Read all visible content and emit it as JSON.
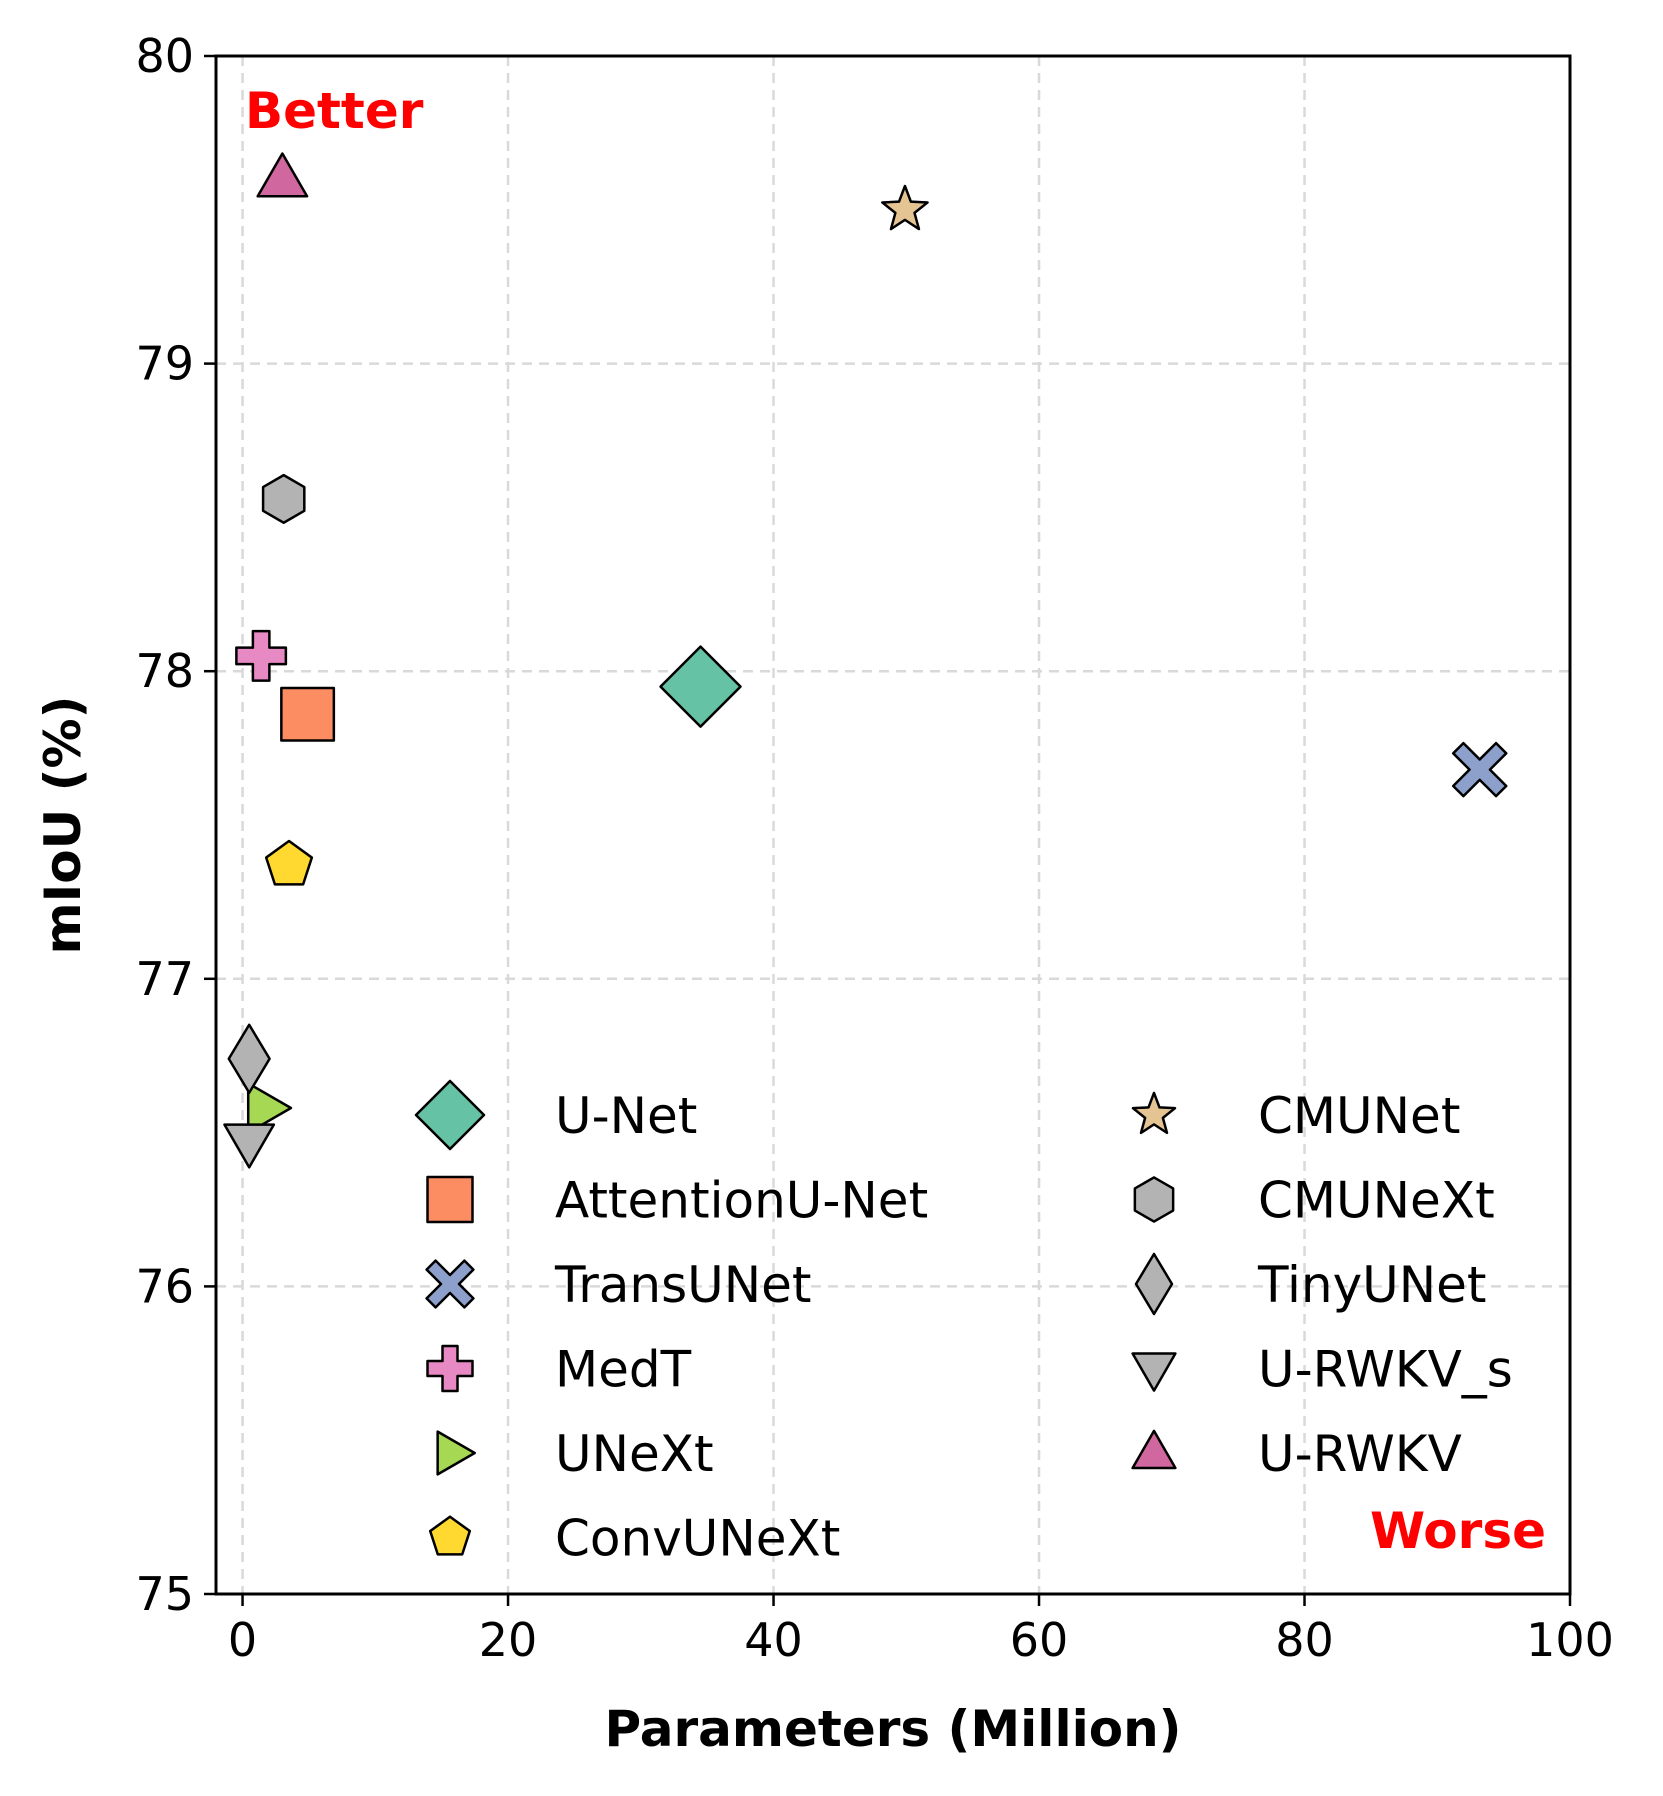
{
  "chart_data": {
    "type": "scatter",
    "xlabel": "Parameters (Million)",
    "ylabel": "mIoU (%)",
    "xlim": [
      -2,
      100
    ],
    "ylim": [
      75,
      80
    ],
    "xticks": [
      "0",
      "20",
      "40",
      "60",
      "80",
      "100"
    ],
    "yticks": [
      "75",
      "76",
      "77",
      "78",
      "79",
      "80"
    ],
    "grid": true,
    "legend_position": "lower-center",
    "annotations": {
      "better": "Better",
      "worse": "Worse"
    },
    "series": [
      {
        "name": "U-Net",
        "x": 34.5,
        "y": 77.95,
        "marker": "diamond",
        "color": "#66c2a5"
      },
      {
        "name": "AttentionU-Net",
        "x": 4.9,
        "y": 77.86,
        "marker": "square",
        "color": "#fc8d62"
      },
      {
        "name": "TransUNet",
        "x": 93.2,
        "y": 77.68,
        "marker": "x",
        "color": "#8da0cb"
      },
      {
        "name": "MedT",
        "x": 1.4,
        "y": 78.05,
        "marker": "plus",
        "color": "#e78ac3"
      },
      {
        "name": "UNeXt",
        "x": 1.5,
        "y": 76.58,
        "marker": "triangle-right",
        "color": "#a6d854"
      },
      {
        "name": "ConvUNeXt",
        "x": 3.5,
        "y": 77.37,
        "marker": "pentagon",
        "color": "#ffd92f"
      },
      {
        "name": "CMUNet",
        "x": 49.9,
        "y": 79.5,
        "marker": "star",
        "color": "#e5c494"
      },
      {
        "name": "CMUNeXt",
        "x": 3.1,
        "y": 78.56,
        "marker": "hexagon",
        "color": "#b3b3b3"
      },
      {
        "name": "TinyUNet",
        "x": 0.5,
        "y": 76.74,
        "marker": "thin-diamond",
        "color": "#b3b3b3"
      },
      {
        "name": "U-RWKV_s",
        "x": 0.5,
        "y": 76.47,
        "marker": "triangle-down",
        "color": "#b3b3b3"
      },
      {
        "name": "U-RWKV",
        "x": 3.0,
        "y": 79.6,
        "marker": "triangle-up",
        "color": "#d0679f"
      }
    ]
  }
}
